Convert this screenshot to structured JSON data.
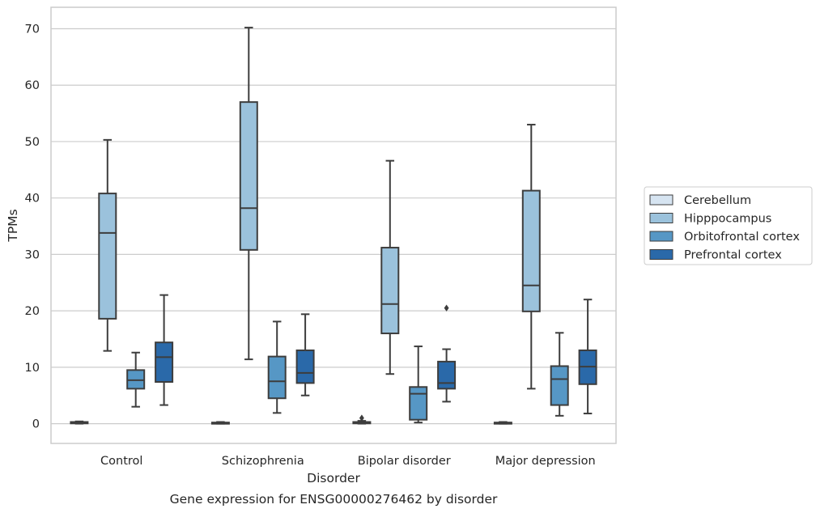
{
  "chart_data": {
    "type": "box",
    "title": "",
    "caption": "Gene expression for ENSG00000276462 by disorder",
    "xlabel": "Disorder",
    "ylabel": "TPMs",
    "ylim": [
      -3.5,
      73.8
    ],
    "yticks": [
      0,
      10,
      20,
      30,
      40,
      50,
      60,
      70
    ],
    "grid": "horizontal",
    "legend_position": "right",
    "categories": [
      "Control",
      "Schizophrenia",
      "Bipolar disorder",
      "Major depression"
    ],
    "series": [
      {
        "name": "Cerebellum",
        "color": "#d6e4f1",
        "boxes": [
          {
            "whislo": 0.0,
            "q1": 0.05,
            "med": 0.15,
            "q3": 0.3,
            "whishi": 0.4,
            "fliers": []
          },
          {
            "whislo": 0.0,
            "q1": 0.03,
            "med": 0.1,
            "q3": 0.2,
            "whishi": 0.3,
            "fliers": []
          },
          {
            "whislo": 0.0,
            "q1": 0.05,
            "med": 0.15,
            "q3": 0.3,
            "whishi": 0.5,
            "fliers": [
              1.0
            ]
          },
          {
            "whislo": 0.0,
            "q1": 0.03,
            "med": 0.1,
            "q3": 0.2,
            "whishi": 0.3,
            "fliers": []
          }
        ]
      },
      {
        "name": "Hipppocampus",
        "color": "#9bc2dc",
        "boxes": [
          {
            "whislo": 12.9,
            "q1": 18.6,
            "med": 33.8,
            "q3": 40.8,
            "whishi": 50.3,
            "fliers": []
          },
          {
            "whislo": 11.4,
            "q1": 30.8,
            "med": 38.2,
            "q3": 57.0,
            "whishi": 70.2,
            "fliers": []
          },
          {
            "whislo": 8.8,
            "q1": 16.0,
            "med": 21.2,
            "q3": 31.2,
            "whishi": 46.6,
            "fliers": []
          },
          {
            "whislo": 6.2,
            "q1": 19.9,
            "med": 24.5,
            "q3": 41.3,
            "whishi": 53.0,
            "fliers": []
          }
        ]
      },
      {
        "name": "Orbitofrontal cortex",
        "color": "#5697c5",
        "boxes": [
          {
            "whislo": 3.0,
            "q1": 6.2,
            "med": 7.7,
            "q3": 9.5,
            "whishi": 12.6,
            "fliers": []
          },
          {
            "whislo": 1.9,
            "q1": 4.5,
            "med": 7.5,
            "q3": 11.9,
            "whishi": 18.1,
            "fliers": []
          },
          {
            "whislo": 0.2,
            "q1": 0.7,
            "med": 5.3,
            "q3": 6.5,
            "whishi": 13.7,
            "fliers": []
          },
          {
            "whislo": 1.4,
            "q1": 3.3,
            "med": 7.9,
            "q3": 10.2,
            "whishi": 16.1,
            "fliers": []
          }
        ]
      },
      {
        "name": "Prefrontal cortex",
        "color": "#2a69a9",
        "boxes": [
          {
            "whislo": 3.3,
            "q1": 7.4,
            "med": 11.8,
            "q3": 14.4,
            "whishi": 22.8,
            "fliers": []
          },
          {
            "whislo": 5.0,
            "q1": 7.2,
            "med": 9.0,
            "q3": 13.0,
            "whishi": 19.4,
            "fliers": []
          },
          {
            "whislo": 3.9,
            "q1": 6.2,
            "med": 7.2,
            "q3": 11.0,
            "whishi": 13.2,
            "fliers": [
              20.5
            ]
          },
          {
            "whislo": 1.8,
            "q1": 7.0,
            "med": 10.1,
            "q3": 13.0,
            "whishi": 22.0,
            "fliers": []
          }
        ]
      }
    ]
  }
}
